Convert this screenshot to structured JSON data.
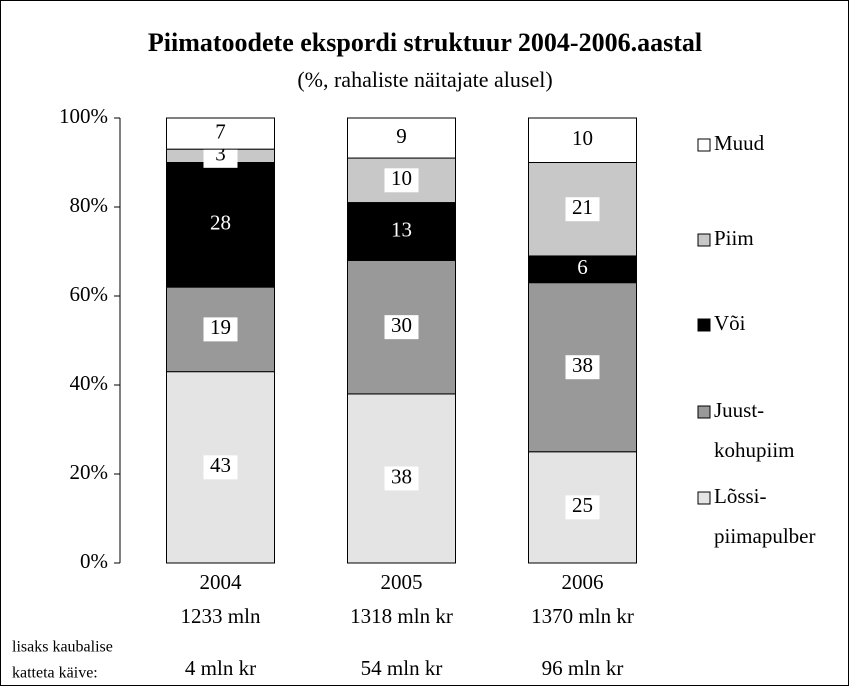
{
  "chart_data": {
    "type": "stacked_bar",
    "title": "Piimatoodete ekspordi struktuur 2004-2006.aastal",
    "subtitle": "(%, rahaliste näitajate alusel)",
    "categories": [
      "2004",
      "2005",
      "2006"
    ],
    "category_sublabels": [
      "1233 mln",
      "1318 mln kr",
      "1370 mln kr"
    ],
    "extra_label": [
      "lisaks kaubalise",
      "katteta käive:"
    ],
    "extra_values": [
      "4 mln kr",
      "54 mln kr",
      "96 mln kr"
    ],
    "series": [
      {
        "name": "Lõssi-piimapulber",
        "color": "#e4e4e4",
        "values": [
          43,
          38,
          25
        ]
      },
      {
        "name": "Juust-kohupiim",
        "color": "#999999",
        "values": [
          19,
          30,
          38
        ]
      },
      {
        "name": "Või",
        "color": "#000000",
        "values": [
          28,
          13,
          6
        ]
      },
      {
        "name": "Piim",
        "color": "#c8c8c8",
        "values": [
          3,
          10,
          21
        ]
      },
      {
        "name": "Muud",
        "color": "#ffffff",
        "values": [
          7,
          9,
          10
        ]
      }
    ],
    "ylim": [
      0,
      100
    ],
    "yticks": [
      {
        "value": 0,
        "label": "0%"
      },
      {
        "value": 20,
        "label": "20%"
      },
      {
        "value": 40,
        "label": "40%"
      },
      {
        "value": 60,
        "label": "60%"
      },
      {
        "value": 80,
        "label": "80%"
      },
      {
        "value": 100,
        "label": "100%"
      }
    ],
    "legend": "right"
  }
}
